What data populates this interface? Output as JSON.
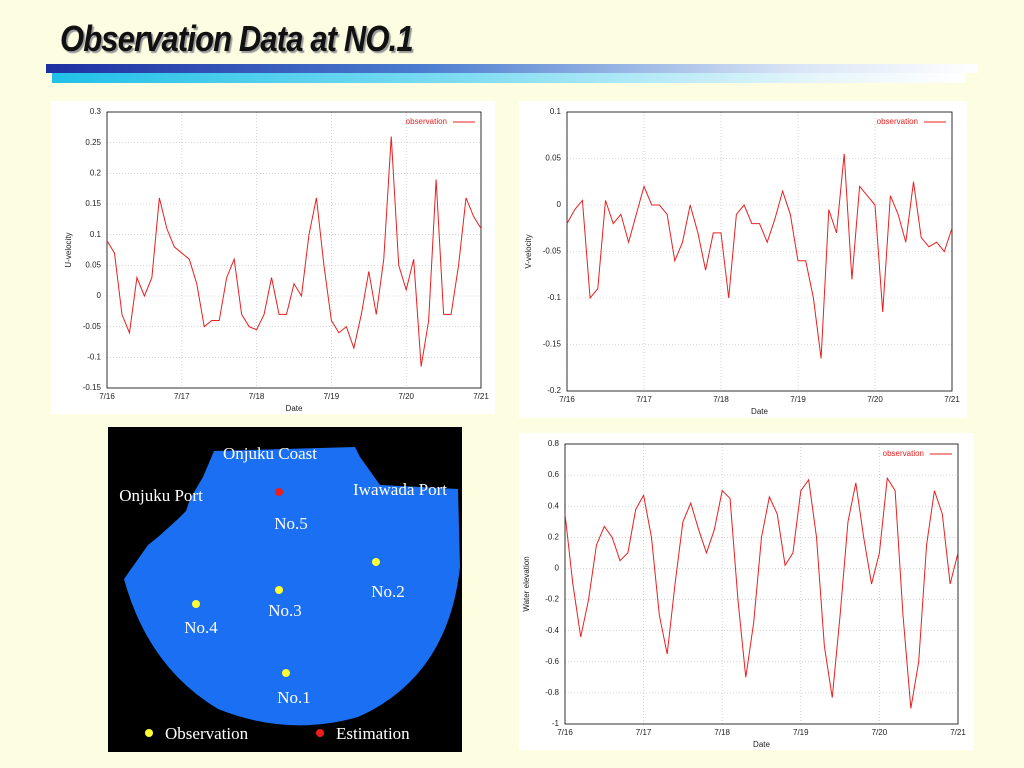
{
  "title": "Observation Data at NO.1",
  "chart_data": [
    {
      "type": "line",
      "xlabel": "Date",
      "ylabel": "U-velocity",
      "xlim": [
        16,
        21
      ],
      "xticks": [
        {
          "value": 16,
          "label": "7/16"
        },
        {
          "value": 17,
          "label": "7/17"
        },
        {
          "value": 18,
          "label": "7/18"
        },
        {
          "value": 19,
          "label": "7/19"
        },
        {
          "value": 20,
          "label": "7/20"
        },
        {
          "value": 21,
          "label": "7/21"
        }
      ],
      "ylim": [
        -0.15,
        0.3
      ],
      "yticks": [
        -0.15,
        -0.1,
        -0.05,
        0,
        0.05,
        0.1,
        0.15,
        0.2,
        0.25,
        0.3
      ],
      "grid": true,
      "legend": "upper right",
      "x": [
        16,
        16.1,
        16.2,
        16.3,
        16.4,
        16.5,
        16.6,
        16.7,
        16.8,
        16.9,
        17,
        17.1,
        17.2,
        17.3,
        17.4,
        17.5,
        17.6,
        17.7,
        17.8,
        17.9,
        18,
        18.1,
        18.2,
        18.3,
        18.4,
        18.5,
        18.6,
        18.7,
        18.8,
        18.9,
        19,
        19.1,
        19.2,
        19.3,
        19.4,
        19.5,
        19.6,
        19.7,
        19.8,
        19.9,
        20,
        20.1,
        20.2,
        20.3,
        20.4,
        20.5,
        20.6,
        20.7,
        20.8,
        20.9,
        21
      ],
      "series": [
        {
          "name": "observation",
          "color": "#e82020",
          "values": [
            0.09,
            0.07,
            -0.03,
            -0.06,
            0.03,
            0,
            0.03,
            0.16,
            0.11,
            0.08,
            0.07,
            0.06,
            0.02,
            -0.05,
            -0.04,
            -0.04,
            0.03,
            0.06,
            -0.03,
            -0.05,
            -0.055,
            -0.03,
            0.03,
            -0.03,
            -0.03,
            0.02,
            0,
            0.1,
            0.16,
            0.05,
            -0.04,
            -0.06,
            -0.05,
            -0.085,
            -0.03,
            0.04,
            -0.03,
            0.06,
            0.26,
            0.05,
            0.01,
            0.06,
            -0.115,
            -0.04,
            0.19,
            -0.03,
            -0.03,
            0.05,
            0.16,
            0.13,
            0.11
          ]
        }
      ]
    },
    {
      "type": "line",
      "xlabel": "Date",
      "ylabel": "V-velocity",
      "xlim": [
        16,
        21
      ],
      "xticks": [
        {
          "value": 16,
          "label": "7/16"
        },
        {
          "value": 17,
          "label": "7/17"
        },
        {
          "value": 18,
          "label": "7/18"
        },
        {
          "value": 19,
          "label": "7/19"
        },
        {
          "value": 20,
          "label": "7/20"
        },
        {
          "value": 21,
          "label": "7/21"
        }
      ],
      "ylim": [
        -0.2,
        0.1
      ],
      "yticks": [
        -0.2,
        -0.15,
        -0.1,
        -0.05,
        0,
        0.05,
        0.1
      ],
      "grid": true,
      "legend": "upper right",
      "x": [
        16,
        16.1,
        16.2,
        16.3,
        16.4,
        16.5,
        16.6,
        16.7,
        16.8,
        16.9,
        17,
        17.1,
        17.2,
        17.3,
        17.4,
        17.5,
        17.6,
        17.7,
        17.8,
        17.9,
        18,
        18.1,
        18.2,
        18.3,
        18.4,
        18.5,
        18.6,
        18.7,
        18.8,
        18.9,
        19,
        19.1,
        19.2,
        19.3,
        19.4,
        19.5,
        19.6,
        19.7,
        19.8,
        19.9,
        20,
        20.1,
        20.2,
        20.3,
        20.4,
        20.5,
        20.6,
        20.7,
        20.8,
        20.9,
        21
      ],
      "series": [
        {
          "name": "observation",
          "color": "#e82020",
          "values": [
            -0.02,
            -0.005,
            0.005,
            -0.1,
            -0.09,
            0.005,
            -0.02,
            -0.01,
            -0.04,
            -0.01,
            0.02,
            0,
            0,
            -0.01,
            -0.06,
            -0.04,
            0,
            -0.03,
            -0.07,
            -0.03,
            -0.03,
            -0.1,
            -0.01,
            0,
            -0.02,
            -0.02,
            -0.04,
            -0.015,
            0.015,
            -0.01,
            -0.06,
            -0.06,
            -0.1,
            -0.165,
            -0.005,
            -0.03,
            0.055,
            -0.08,
            0.02,
            0.01,
            0,
            -0.115,
            0.01,
            -0.01,
            -0.04,
            0.025,
            -0.035,
            -0.045,
            -0.04,
            -0.05,
            -0.025
          ]
        }
      ]
    },
    {
      "type": "line",
      "xlabel": "Date",
      "ylabel": "Water elevation",
      "xlim": [
        16,
        21
      ],
      "xticks": [
        {
          "value": 16,
          "label": "7/16"
        },
        {
          "value": 17,
          "label": "7/17"
        },
        {
          "value": 18,
          "label": "7/18"
        },
        {
          "value": 19,
          "label": "7/19"
        },
        {
          "value": 20,
          "label": "7/20"
        },
        {
          "value": 21,
          "label": "7/21"
        }
      ],
      "ylim": [
        -1,
        0.8
      ],
      "yticks": [
        -1,
        -0.8,
        -0.6,
        -0.4,
        -0.2,
        0,
        0.2,
        0.4,
        0.6,
        0.8
      ],
      "grid": true,
      "legend": "upper right",
      "x": [
        16,
        16.1,
        16.2,
        16.3,
        16.4,
        16.5,
        16.6,
        16.7,
        16.8,
        16.9,
        17,
        17.1,
        17.2,
        17.3,
        17.4,
        17.5,
        17.6,
        17.7,
        17.8,
        17.9,
        18,
        18.1,
        18.2,
        18.3,
        18.4,
        18.5,
        18.6,
        18.7,
        18.8,
        18.9,
        19,
        19.1,
        19.2,
        19.3,
        19.4,
        19.5,
        19.6,
        19.7,
        19.8,
        19.9,
        20,
        20.1,
        20.2,
        20.3,
        20.4,
        20.5,
        20.6,
        20.7,
        20.8,
        20.9,
        21
      ],
      "series": [
        {
          "name": "observation",
          "color": "#e82020",
          "values": [
            0.35,
            -0.1,
            -0.44,
            -0.2,
            0.15,
            0.27,
            0.2,
            0.05,
            0.1,
            0.38,
            0.47,
            0.2,
            -0.3,
            -0.55,
            -0.1,
            0.3,
            0.42,
            0.25,
            0.1,
            0.25,
            0.5,
            0.45,
            -0.2,
            -0.7,
            -0.35,
            0.2,
            0.46,
            0.35,
            0.02,
            0.1,
            0.5,
            0.57,
            0.2,
            -0.5,
            -0.83,
            -0.3,
            0.3,
            0.55,
            0.2,
            -0.1,
            0.1,
            0.58,
            0.5,
            -0.3,
            -0.9,
            -0.6,
            0.15,
            0.5,
            0.35,
            -0.1,
            0.1
          ]
        }
      ]
    }
  ],
  "map": {
    "places": [
      {
        "label": "Onjuku Coast"
      },
      {
        "label": "Onjuku Port"
      },
      {
        "label": "Iwawada Port"
      }
    ],
    "stations": [
      {
        "label": "No.5",
        "color": "#ee1c1c"
      },
      {
        "label": "No.2",
        "color": "#ffff33"
      },
      {
        "label": "No.3",
        "color": "#ffff33"
      },
      {
        "label": "No.4",
        "color": "#ffff33"
      },
      {
        "label": "No.1",
        "color": "#ffff33"
      }
    ],
    "legend": [
      {
        "label": "Observation",
        "color": "#ffff33"
      },
      {
        "label": "Estimation",
        "color": "#ee1c1c"
      }
    ]
  }
}
